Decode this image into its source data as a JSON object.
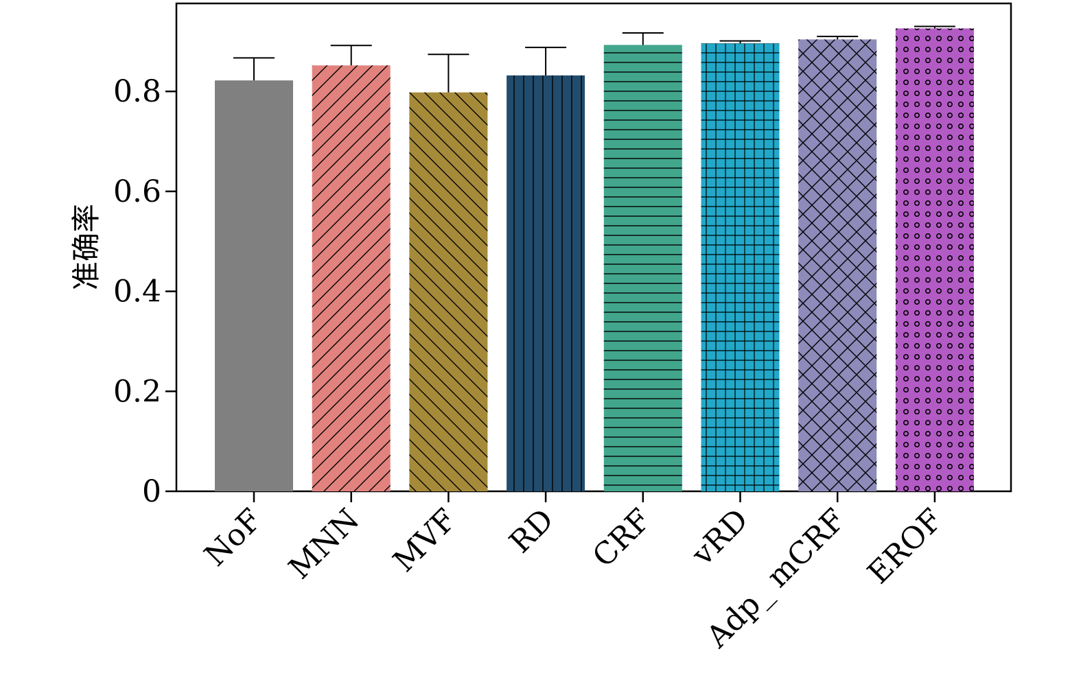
{
  "chart_data": {
    "type": "bar",
    "ylabel": "准确率",
    "xlabel": "",
    "title": "",
    "ylim": [
      0,
      0.976
    ],
    "yticks": [
      0,
      0.2,
      0.4,
      0.6,
      0.8
    ],
    "ytick_labels": [
      "0",
      "0.2",
      "0.4",
      "0.6",
      "0.8"
    ],
    "grid": false,
    "categories": [
      "NoF",
      "MNN",
      "MVF",
      "RD",
      "CRF",
      "vRD",
      "Adp_ mCRF",
      "EROF"
    ],
    "values": [
      0.822,
      0.852,
      0.798,
      0.832,
      0.893,
      0.896,
      0.904,
      0.926
    ],
    "errors": [
      0.045,
      0.04,
      0.076,
      0.056,
      0.024,
      0.005,
      0.006,
      0.004
    ],
    "colors": [
      "#808080",
      "#e2827e",
      "#a58a3a",
      "#224c6d",
      "#42a68c",
      "#22a8c8",
      "#8e8aba",
      "#b35bc5"
    ],
    "patterns": [
      "none",
      "diag-up",
      "diag-down",
      "vertical",
      "horizontal",
      "grid",
      "crosshatch",
      "circles"
    ]
  }
}
